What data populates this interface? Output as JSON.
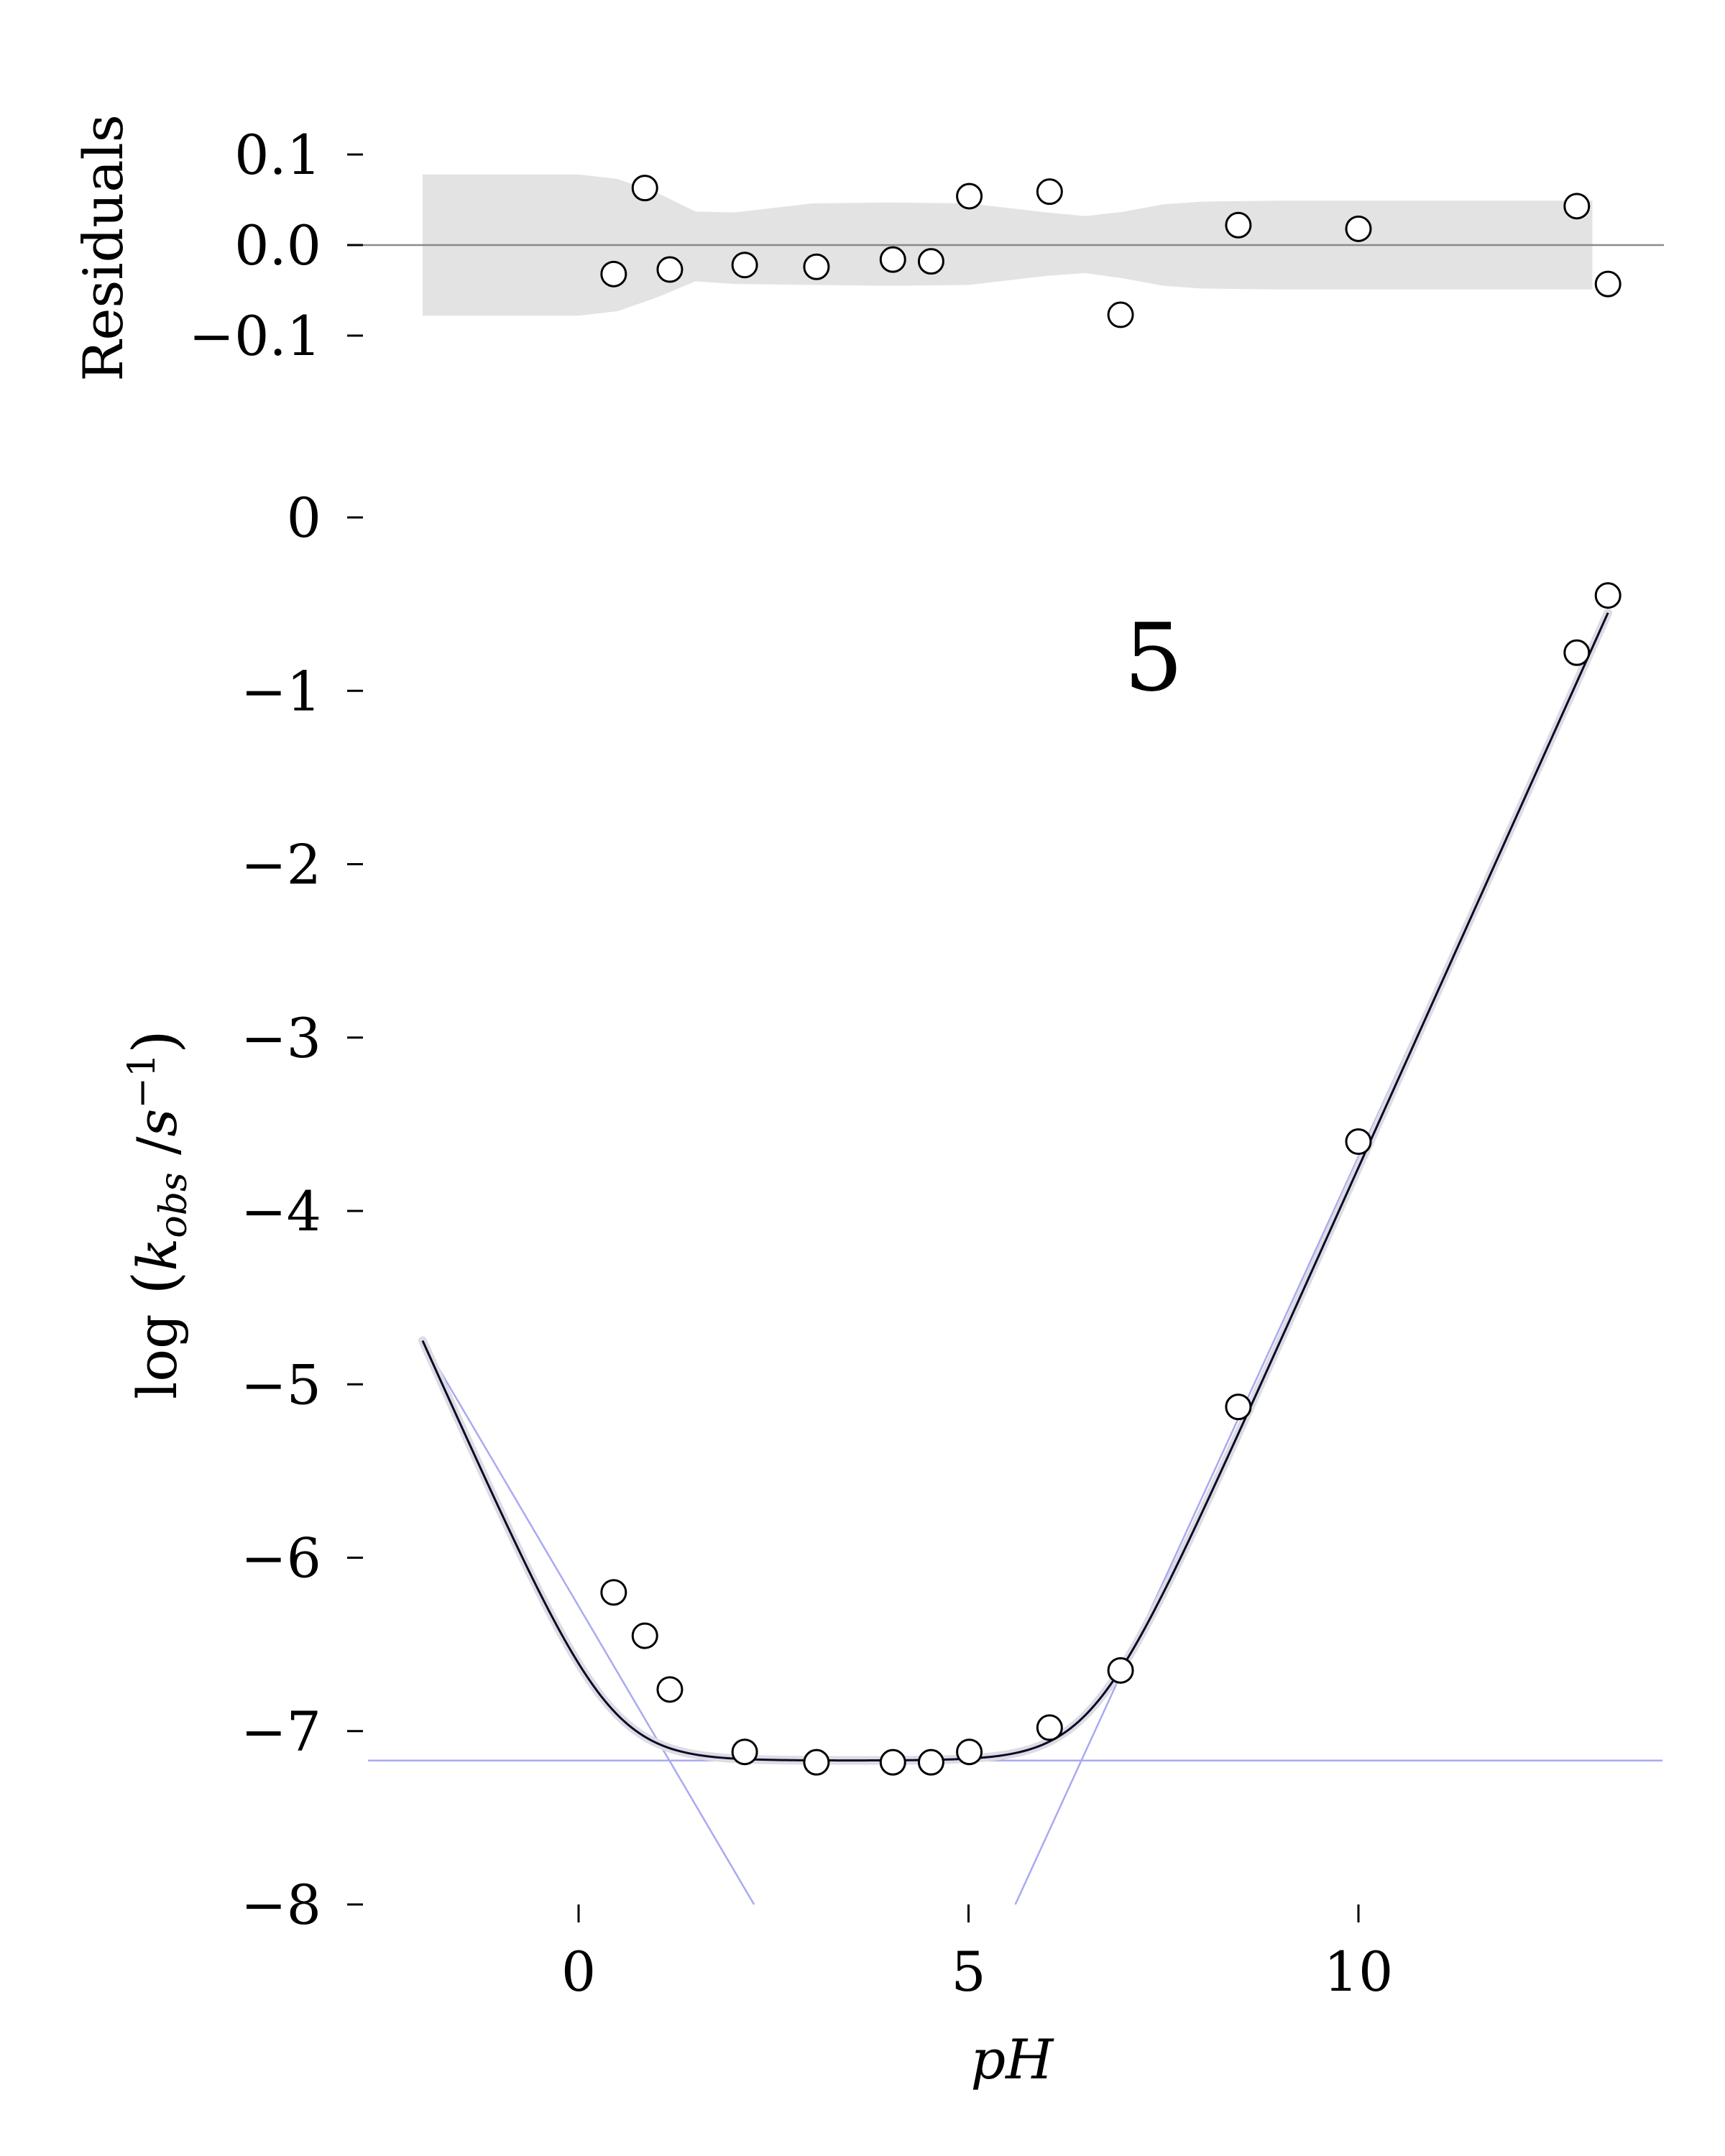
{
  "chart_data": [
    {
      "type": "scatter",
      "panel": "residuals",
      "ylabel": "Residuals",
      "ylim": [
        -0.16,
        0.16
      ],
      "xlim": [
        -2.7,
        13.9
      ],
      "yticks": [
        0.1,
        0.0,
        -0.1
      ],
      "ytick_labels": [
        "0.1",
        "0.0",
        "−0.1"
      ],
      "zero_line": true,
      "series": [
        {
          "points": [
            {
              "x": 0.45,
              "y": -0.032
            },
            {
              "x": 0.85,
              "y": 0.063
            },
            {
              "x": 1.17,
              "y": -0.027
            },
            {
              "x": 2.13,
              "y": -0.022
            },
            {
              "x": 3.05,
              "y": -0.024
            },
            {
              "x": 4.03,
              "y": -0.016
            },
            {
              "x": 4.52,
              "y": -0.018
            },
            {
              "x": 5.01,
              "y": 0.054
            },
            {
              "x": 6.04,
              "y": 0.059
            },
            {
              "x": 6.95,
              "y": -0.077
            },
            {
              "x": 8.46,
              "y": 0.022
            },
            {
              "x": 10.0,
              "y": 0.018
            },
            {
              "x": 12.8,
              "y": 0.043
            },
            {
              "x": 13.2,
              "y": -0.043
            }
          ]
        }
      ],
      "confidence_band": {
        "x": [
          -2.0,
          0.0,
          0.5,
          1.0,
          1.5,
          2.0,
          3.0,
          4.0,
          5.0,
          6.0,
          6.5,
          7.0,
          7.5,
          8.0,
          9.0,
          10.0,
          12.0,
          13.0
        ],
        "upper": [
          0.078,
          0.078,
          0.073,
          0.058,
          0.037,
          0.036,
          0.046,
          0.047,
          0.046,
          0.036,
          0.032,
          0.037,
          0.045,
          0.048,
          0.049,
          0.049,
          0.049,
          0.049
        ],
        "lower": [
          -0.078,
          -0.078,
          -0.073,
          -0.058,
          -0.04,
          -0.043,
          -0.044,
          -0.045,
          -0.044,
          -0.034,
          -0.031,
          -0.037,
          -0.045,
          -0.048,
          -0.049,
          -0.049,
          -0.049,
          -0.049
        ]
      }
    },
    {
      "type": "line",
      "panel": "main",
      "annotation": "5",
      "xlabel": "pH",
      "ylabel_parts": {
        "log": "log",
        "k": "k",
        "sub": "obs",
        "unit": "s",
        "exp": "−1"
      },
      "xlim": [
        -2.7,
        13.9
      ],
      "ylim": [
        -8.0,
        0.0
      ],
      "xticks": [
        0,
        5,
        10
      ],
      "xtick_labels": [
        "0",
        "5",
        "10"
      ],
      "yticks": [
        0,
        -1,
        -2,
        -3,
        -4,
        -5,
        -6,
        -7,
        -8
      ],
      "ytick_labels": [
        "0",
        "−1",
        "−2",
        "−3",
        "−4",
        "−5",
        "−6",
        "−7",
        "−8"
      ],
      "model": {
        "log_k_acid": -6.75,
        "log_k_water": -7.17,
        "log_k_base": -13.75,
        "x_range": [
          -2.0,
          13.2
        ]
      },
      "asymptotes": [
        {
          "kind": "acid",
          "x": [
            -2.0,
            2.25
          ],
          "y": [
            -4.75,
            -8.0
          ]
        },
        {
          "kind": "water",
          "x": [
            -2.7,
            13.9
          ],
          "y": [
            -7.17,
            -7.17
          ]
        },
        {
          "kind": "base",
          "x": [
            5.6,
            13.2
          ],
          "y": [
            -8.0,
            -0.55
          ]
        }
      ],
      "series": [
        {
          "points": [
            {
              "x": 0.45,
              "y": -6.2
            },
            {
              "x": 0.85,
              "y": -6.45
            },
            {
              "x": 1.17,
              "y": -6.76
            },
            {
              "x": 2.13,
              "y": -7.12
            },
            {
              "x": 3.05,
              "y": -7.18
            },
            {
              "x": 4.03,
              "y": -7.18
            },
            {
              "x": 4.52,
              "y": -7.18
            },
            {
              "x": 5.01,
              "y": -7.12
            },
            {
              "x": 6.04,
              "y": -6.98
            },
            {
              "x": 6.95,
              "y": -6.65
            },
            {
              "x": 8.46,
              "y": -5.13
            },
            {
              "x": 10.0,
              "y": -3.6
            },
            {
              "x": 12.8,
              "y": -0.78
            },
            {
              "x": 13.2,
              "y": -0.45
            }
          ]
        }
      ]
    }
  ]
}
